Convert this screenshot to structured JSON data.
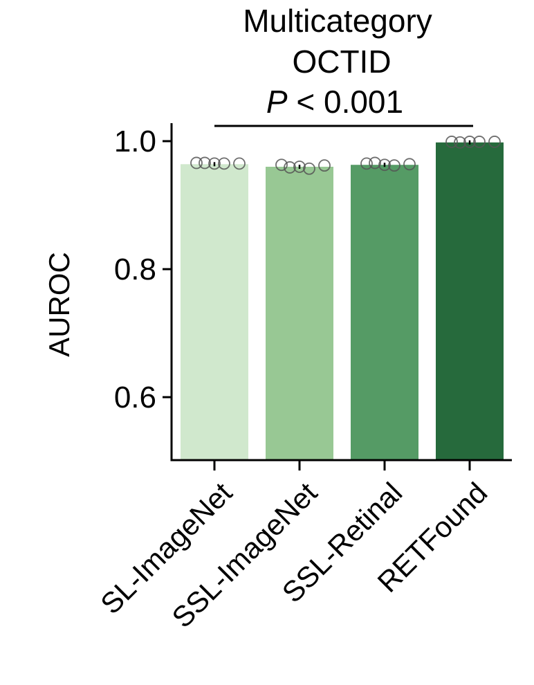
{
  "chart_data": {
    "type": "bar",
    "title": [
      "Multicategory",
      "OCTID"
    ],
    "annotation": {
      "p_symbol": "P",
      "p_rest": " < 0.001"
    },
    "categories": [
      "SL-ImageNet",
      "SSL-ImageNet",
      "SSL-Retinal",
      "RETFound"
    ],
    "values": [
      0.964,
      0.96,
      0.963,
      0.998
    ],
    "points": [
      [
        0.966,
        0.966,
        0.965,
        0.965,
        0.965
      ],
      [
        0.963,
        0.959,
        0.96,
        0.957,
        0.962
      ],
      [
        0.965,
        0.966,
        0.963,
        0.962,
        0.964
      ],
      [
        0.999,
        0.998,
        0.999,
        0.999,
        0.999
      ]
    ],
    "colors": [
      "#d0e8cd",
      "#98c894",
      "#559b65",
      "#266a3c"
    ],
    "xlabel": "",
    "ylabel": "AUROC",
    "ylim": [
      0.5,
      1.03
    ],
    "yticks": [
      0.6,
      0.8,
      1.0
    ],
    "ytick_labels": [
      "0.6",
      "0.8",
      "1.0"
    ],
    "grid": false,
    "legend": "none"
  }
}
